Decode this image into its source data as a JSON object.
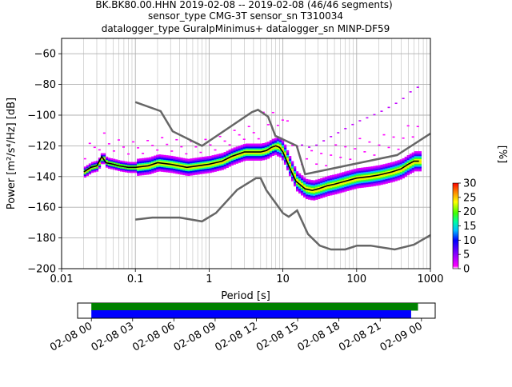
{
  "title": {
    "line1": "BK.BK80.00.HHN   2019-02-08 -- 2019-02-08  (46/46 segments)",
    "line2": "sensor_type CMG-3T sensor_sn T310034",
    "line3": "datalogger_type GuralpMinimus+ datalogger_sn MINP-DF59"
  },
  "chart_data": [
    {
      "type": "heatmap",
      "xlabel": "Period [s]",
      "ylabel": "Power [m²/s⁴/Hz] [dB]",
      "xscale": "log",
      "xlim": [
        0.01,
        1000
      ],
      "ylim": [
        -200,
        -50
      ],
      "xticks": [
        {
          "v": 0.01,
          "label": "0.01"
        },
        {
          "v": 0.1,
          "label": "0.1"
        },
        {
          "v": 1,
          "label": "1"
        },
        {
          "v": 10,
          "label": "10"
        },
        {
          "v": 100,
          "label": "100"
        },
        {
          "v": 1000,
          "label": "1000"
        }
      ],
      "yticks": [
        -200,
        -180,
        -160,
        -140,
        -120,
        -100,
        -80,
        -60
      ],
      "grid": true,
      "colorbar": {
        "label": "[%]",
        "min": 0,
        "max": 30,
        "ticks": [
          0,
          5,
          10,
          15,
          20,
          25,
          30
        ]
      },
      "mode_curve": {
        "period": [
          0.02,
          0.025,
          0.03,
          0.035,
          0.04,
          0.05,
          0.06,
          0.08,
          0.1,
          0.15,
          0.2,
          0.3,
          0.5,
          0.7,
          1,
          1.5,
          2,
          3,
          4,
          5,
          6,
          7,
          8,
          9,
          10,
          12,
          15,
          20,
          25,
          30,
          40,
          50,
          70,
          100,
          150,
          200,
          300,
          400,
          500,
          600,
          700
        ],
        "power": [
          -137,
          -134,
          -133,
          -127,
          -131,
          -132,
          -133,
          -134,
          -134,
          -133,
          -131,
          -132,
          -134,
          -133,
          -132,
          -130,
          -127,
          -124,
          -124,
          -124,
          -123,
          -121,
          -120,
          -121,
          -124,
          -133,
          -143,
          -148,
          -149,
          -148,
          -146,
          -145,
          -143,
          -141,
          -140,
          -139,
          -137,
          -135,
          -132,
          -130,
          -130
        ]
      },
      "noise_models": {
        "NHNM": {
          "period": [
            0.1,
            0.22,
            0.32,
            0.8,
            3.8,
            4.6,
            6.3,
            7.9,
            15.4,
            20,
            354.8,
            1000
          ],
          "power": [
            -91.5,
            -97.4,
            -110.5,
            -120,
            -98,
            -96.5,
            -101,
            -113.5,
            -120,
            -138.5,
            -126,
            -112
          ]
        },
        "NLNM": {
          "period": [
            0.1,
            0.17,
            0.4,
            0.8,
            1.24,
            2.4,
            4.3,
            5,
            6,
            10,
            12,
            15.6,
            21.9,
            31.6,
            45,
            70,
            101,
            154,
            328,
            600,
            1000
          ],
          "power": [
            -168,
            -166.7,
            -166.7,
            -169.2,
            -163.7,
            -148.6,
            -141.1,
            -141.1,
            -149,
            -163.8,
            -166.2,
            -162.1,
            -177.5,
            -185,
            -187.5,
            -187.5,
            -185,
            -185,
            -187.5,
            -184.4,
            -178.2
          ]
        }
      }
    },
    {
      "type": "timeline",
      "xticks": [
        "02-08 00",
        "02-08 03",
        "02-08 06",
        "02-08 09",
        "02-08 12",
        "02-08 15",
        "02-08 18",
        "02-08 21",
        "02-09 00"
      ],
      "xlim_hours": [
        -1,
        25
      ],
      "series": [
        {
          "color": "#008000",
          "start_hour": 0,
          "end_hour": 23.75
        },
        {
          "color": "#0000ff",
          "start_hour": 0,
          "end_hour": 23.25
        }
      ]
    }
  ]
}
